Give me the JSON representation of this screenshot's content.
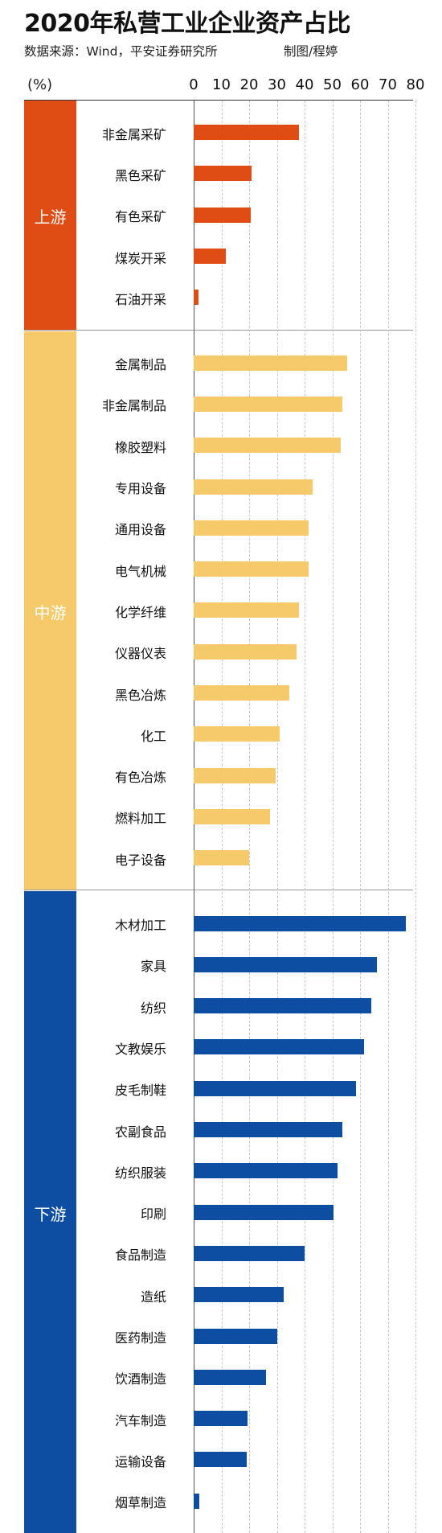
{
  "title": "2020年私营工业企业资产占比",
  "source": "数据来源：Wind，平安证券研究所",
  "author": "制图/程婷",
  "colors": {
    "upstream": "#e04d14",
    "midstream": "#f6c96b",
    "downstream": "#0d4ea3"
  },
  "chart_data": {
    "type": "bar",
    "orientation": "horizontal",
    "title": "2020年私营工业企业资产占比",
    "unit": "(%)",
    "xlim": [
      0,
      80
    ],
    "ticks": [
      0,
      10,
      20,
      30,
      40,
      50,
      60,
      70,
      80
    ],
    "grid": true,
    "groups": [
      {
        "name": "上游",
        "color": "#e04d14",
        "categories": [
          "非金属采矿",
          "黑色采矿",
          "有色采矿",
          "煤炭开采",
          "石油开采"
        ],
        "values": [
          38,
          21,
          20.5,
          11.5,
          1.8
        ]
      },
      {
        "name": "中游",
        "color": "#f6c96b",
        "categories": [
          "金属制品",
          "非金属制品",
          "橡胶塑料",
          "专用设备",
          "通用设备",
          "电气机械",
          "化学纤维",
          "仪器仪表",
          "黑色冶炼",
          "化工",
          "有色冶炼",
          "燃料加工",
          "电子设备"
        ],
        "values": [
          55.5,
          53.5,
          53,
          43,
          41.5,
          41.5,
          38,
          37,
          34.5,
          31,
          29.5,
          27.5,
          20
        ]
      },
      {
        "name": "下游",
        "color": "#0d4ea3",
        "categories": [
          "木材加工",
          "家具",
          "纺织",
          "文教娱乐",
          "皮毛制鞋",
          "农副食品",
          "纺织服装",
          "印刷",
          "食品制造",
          "造纸",
          "医药制造",
          "饮酒制造",
          "汽车制造",
          "运输设备",
          "烟草制造"
        ],
        "values": [
          76.5,
          66,
          64,
          61.5,
          58.5,
          53.5,
          52,
          50.5,
          40,
          32.5,
          30,
          26,
          19.5,
          19,
          2
        ]
      }
    ]
  }
}
